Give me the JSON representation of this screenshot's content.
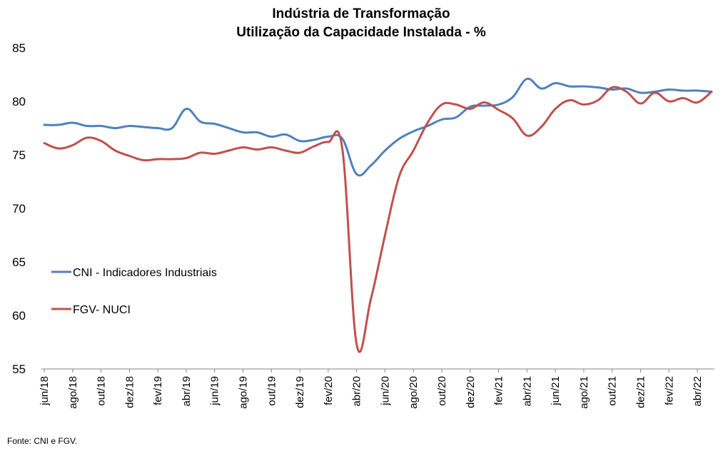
{
  "chart_data": {
    "type": "line",
    "title": "Indústria de Transformação",
    "subtitle": "Utilização da Capacidade Instalada - %",
    "xlabel": "",
    "ylabel": "",
    "ylim": [
      55,
      85
    ],
    "yticks": [
      55,
      60,
      65,
      70,
      75,
      80,
      85
    ],
    "grid": false,
    "legend_position": "left-middle",
    "categories": [
      "jun/18",
      "jul/18",
      "ago/18",
      "set/18",
      "out/18",
      "nov/18",
      "dez/18",
      "jan/19",
      "fev/19",
      "mar/19",
      "abr/19",
      "mai/19",
      "jun/19",
      "jul/19",
      "ago/19",
      "set/19",
      "out/19",
      "nov/19",
      "dez/19",
      "jan/20",
      "fev/20",
      "mar/20",
      "abr/20",
      "mai/20",
      "jun/20",
      "jul/20",
      "ago/20",
      "set/20",
      "out/20",
      "nov/20",
      "dez/20",
      "jan/21",
      "fev/21",
      "mar/21",
      "abr/21",
      "mai/21",
      "jun/21",
      "jul/21",
      "ago/21",
      "set/21",
      "out/21",
      "nov/21",
      "dez/21",
      "jan/22",
      "fev/22",
      "mar/22",
      "abr/22",
      "mai/22"
    ],
    "xtick_labels": [
      "jun/18",
      "ago/18",
      "out/18",
      "dez/18",
      "fev/19",
      "abr/19",
      "jun/19",
      "ago/19",
      "out/19",
      "dez/19",
      "fev/20",
      "abr/20",
      "jun/20",
      "ago/20",
      "out/20",
      "dez/20",
      "fev/21",
      "abr/21",
      "jun/21",
      "ago/21",
      "out/21",
      "dez/21",
      "fev/22",
      "abr/22"
    ],
    "series": [
      {
        "name": "CNI - Indicadores Industriais",
        "color": "#4F81BD",
        "values": [
          77.8,
          77.8,
          78.0,
          77.7,
          77.7,
          77.5,
          77.7,
          77.6,
          77.5,
          77.5,
          79.3,
          78.1,
          77.9,
          77.5,
          77.1,
          77.1,
          76.7,
          76.9,
          76.3,
          76.4,
          76.7,
          76.5,
          73.2,
          74.0,
          75.4,
          76.5,
          77.2,
          77.7,
          78.3,
          78.5,
          79.5,
          79.6,
          79.7,
          80.4,
          82.1,
          81.2,
          81.7,
          81.4,
          81.4,
          81.3,
          81.1,
          81.2,
          80.8,
          80.9,
          81.1,
          81.0,
          81.0,
          80.9
        ]
      },
      {
        "name": "FGV- NUCI",
        "color": "#C0504D",
        "values": [
          76.1,
          75.6,
          75.9,
          76.6,
          76.3,
          75.4,
          74.9,
          74.5,
          74.6,
          74.6,
          74.7,
          75.2,
          75.1,
          75.4,
          75.7,
          75.5,
          75.7,
          75.4,
          75.2,
          75.8,
          76.2,
          75.5,
          57.3,
          61.5,
          67.5,
          73.0,
          75.4,
          78.0,
          79.7,
          79.7,
          79.3,
          79.9,
          79.2,
          78.4,
          76.8,
          77.6,
          79.3,
          80.1,
          79.7,
          80.1,
          81.3,
          80.9,
          79.8,
          80.8,
          80.0,
          80.3,
          79.9,
          80.9
        ]
      }
    ]
  },
  "footer": {
    "source": "Fonte: CNI e FGV."
  }
}
